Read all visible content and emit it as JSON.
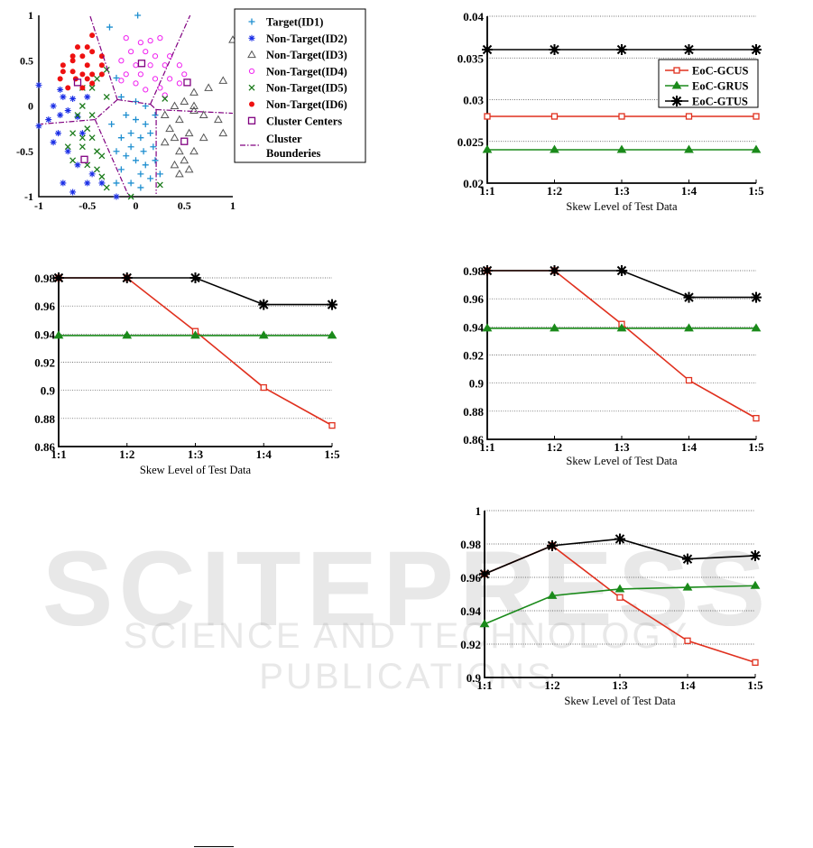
{
  "watermark": {
    "title": "SCITEPRESS",
    "subtitle": "SCIENCE AND TECHNOLOGY PUBLICATIONS"
  },
  "colors": {
    "gcus": "#e0301e",
    "grus": "#1a8a1a",
    "gtus": "#000000",
    "id1": "#1f8fd0",
    "id2": "#1a2ee6",
    "id3": "#555555",
    "id4": "#f020f0",
    "id5": "#1a7a1a",
    "id6": "#ee1111",
    "centers": "#800080",
    "bounds": "#800080"
  },
  "chart_data": [
    {
      "type": "scatter",
      "xlim": [
        -1,
        1
      ],
      "ylim": [
        -1,
        1
      ],
      "xticks": [
        "-1",
        "-0.5",
        "0",
        "0.5",
        "1"
      ],
      "yticks": [
        "1",
        "0.5",
        "0",
        "-0.5",
        "-1"
      ],
      "legend": [
        "Target(ID1)",
        "Non-Target(ID2)",
        "Non-Target(ID3)",
        "Non-Target(ID4)",
        "Non-Target(ID5)",
        "Non-Target(ID6)",
        "Cluster Centers",
        "Cluster Bounderies"
      ],
      "legend_position": "right",
      "series": [
        {
          "name": "Target(ID1)",
          "marker": "plus",
          "points": [
            [
              -0.27,
              0.87
            ],
            [
              0.02,
              1.0
            ],
            [
              -0.2,
              0.31
            ],
            [
              -0.15,
              0.1
            ],
            [
              0,
              0.05
            ],
            [
              0.1,
              0
            ],
            [
              -0.1,
              -0.1
            ],
            [
              0,
              -0.15
            ],
            [
              0.1,
              -0.2
            ],
            [
              -0.05,
              -0.3
            ],
            [
              0.05,
              -0.35
            ],
            [
              0.15,
              -0.3
            ],
            [
              -0.15,
              -0.35
            ],
            [
              -0.05,
              -0.45
            ],
            [
              0.08,
              -0.5
            ],
            [
              0.18,
              -0.45
            ],
            [
              -0.1,
              -0.55
            ],
            [
              0,
              -0.6
            ],
            [
              0.1,
              -0.65
            ],
            [
              -0.15,
              -0.7
            ],
            [
              0.05,
              -0.75
            ],
            [
              0.15,
              -0.8
            ],
            [
              -0.05,
              -0.85
            ],
            [
              0.05,
              -0.9
            ],
            [
              -0.2,
              -0.5
            ],
            [
              0.2,
              -0.1
            ],
            [
              0.2,
              -0.6
            ],
            [
              -0.25,
              -0.2
            ],
            [
              0.25,
              -0.75
            ],
            [
              -0.2,
              -0.85
            ]
          ]
        },
        {
          "name": "Non-Target(ID2)",
          "marker": "star",
          "points": [
            [
              -1,
              0.23
            ],
            [
              -0.78,
              0.18
            ],
            [
              -0.75,
              0.1
            ],
            [
              -0.85,
              0
            ],
            [
              -0.78,
              -0.1
            ],
            [
              -0.9,
              -0.15
            ],
            [
              -0.8,
              -0.3
            ],
            [
              -0.85,
              -0.4
            ],
            [
              -0.7,
              -0.05
            ],
            [
              -0.65,
              0.08
            ],
            [
              -0.6,
              -0.12
            ],
            [
              -0.55,
              -0.3
            ],
            [
              -0.7,
              -0.5
            ],
            [
              -0.6,
              -0.65
            ],
            [
              -0.75,
              -0.85
            ],
            [
              -0.65,
              -0.95
            ],
            [
              -0.5,
              -0.85
            ],
            [
              -0.45,
              -0.75
            ],
            [
              -0.35,
              -0.85
            ],
            [
              -0.2,
              -1.0
            ],
            [
              -1,
              -0.22
            ],
            [
              -0.5,
              0.1
            ]
          ]
        },
        {
          "name": "Non-Target(ID3)",
          "marker": "triangle",
          "points": [
            [
              1,
              0.73
            ],
            [
              0.9,
              0.28
            ],
            [
              0.75,
              0.2
            ],
            [
              0.6,
              0.15
            ],
            [
              0.5,
              0.05
            ],
            [
              0.4,
              0
            ],
            [
              0.3,
              -0.1
            ],
            [
              0.45,
              -0.15
            ],
            [
              0.6,
              -0.05
            ],
            [
              0.7,
              -0.1
            ],
            [
              0.85,
              -0.15
            ],
            [
              0.9,
              -0.3
            ],
            [
              0.7,
              -0.35
            ],
            [
              0.55,
              -0.3
            ],
            [
              0.4,
              -0.35
            ],
            [
              0.3,
              -0.4
            ],
            [
              0.45,
              -0.5
            ],
            [
              0.6,
              -0.5
            ],
            [
              0.5,
              -0.6
            ],
            [
              0.4,
              -0.65
            ],
            [
              0.55,
              -0.7
            ],
            [
              0.45,
              -0.75
            ],
            [
              0.6,
              0
            ],
            [
              0.35,
              -0.25
            ]
          ]
        },
        {
          "name": "Non-Target(ID4)",
          "marker": "circle",
          "points": [
            [
              -0.1,
              0.75
            ],
            [
              0.05,
              0.7
            ],
            [
              0.15,
              0.72
            ],
            [
              0.25,
              0.75
            ],
            [
              -0.05,
              0.6
            ],
            [
              0.1,
              0.6
            ],
            [
              0.2,
              0.55
            ],
            [
              0.35,
              0.55
            ],
            [
              -0.15,
              0.5
            ],
            [
              0,
              0.45
            ],
            [
              0.15,
              0.45
            ],
            [
              0.3,
              0.45
            ],
            [
              0.45,
              0.45
            ],
            [
              0.5,
              0.35
            ],
            [
              -0.1,
              0.35
            ],
            [
              0.05,
              0.35
            ],
            [
              0.2,
              0.3
            ],
            [
              0.35,
              0.3
            ],
            [
              0.45,
              0.25
            ],
            [
              -0.15,
              0.28
            ],
            [
              0,
              0.25
            ],
            [
              0.1,
              0.18
            ],
            [
              0.25,
              0.2
            ],
            [
              0.3,
              0.12
            ]
          ]
        },
        {
          "name": "Non-Target(ID5)",
          "marker": "x",
          "points": [
            [
              -0.3,
              0.4
            ],
            [
              -0.4,
              0.3
            ],
            [
              -0.55,
              0.2
            ],
            [
              -0.45,
              0.2
            ],
            [
              -0.3,
              0.1
            ],
            [
              -0.55,
              0
            ],
            [
              -0.45,
              -0.1
            ],
            [
              -0.6,
              -0.1
            ],
            [
              -0.5,
              -0.25
            ],
            [
              -0.65,
              -0.3
            ],
            [
              -0.55,
              -0.35
            ],
            [
              -0.45,
              -0.35
            ],
            [
              -0.7,
              -0.45
            ],
            [
              -0.55,
              -0.45
            ],
            [
              -0.4,
              -0.5
            ],
            [
              -0.35,
              -0.55
            ],
            [
              -0.65,
              -0.6
            ],
            [
              -0.5,
              -0.65
            ],
            [
              -0.4,
              -0.7
            ],
            [
              -0.35,
              -0.78
            ],
            [
              -0.3,
              -0.9
            ],
            [
              0.25,
              -0.87
            ],
            [
              -0.05,
              -1.0
            ],
            [
              0.3,
              0.08
            ]
          ]
        },
        {
          "name": "Non-Target(ID6)",
          "marker": "dot",
          "points": [
            [
              -0.45,
              0.78
            ],
            [
              -0.6,
              0.65
            ],
            [
              -0.5,
              0.65
            ],
            [
              -0.65,
              0.55
            ],
            [
              -0.55,
              0.55
            ],
            [
              -0.45,
              0.6
            ],
            [
              -0.35,
              0.55
            ],
            [
              -0.75,
              0.45
            ],
            [
              -0.65,
              0.5
            ],
            [
              -0.5,
              0.45
            ],
            [
              -0.35,
              0.45
            ],
            [
              -0.75,
              0.38
            ],
            [
              -0.65,
              0.38
            ],
            [
              -0.55,
              0.35
            ],
            [
              -0.45,
              0.35
            ],
            [
              -0.35,
              0.35
            ],
            [
              -0.78,
              0.3
            ],
            [
              -0.62,
              0.3
            ],
            [
              -0.5,
              0.3
            ],
            [
              -0.45,
              0.25
            ],
            [
              -0.7,
              0.2
            ],
            [
              -0.55,
              0.2
            ]
          ]
        },
        {
          "name": "Cluster Centers",
          "marker": "square",
          "points": [
            [
              -0.6,
              0.26
            ],
            [
              0.06,
              0.47
            ],
            [
              0.53,
              0.26
            ],
            [
              0.5,
              -0.39
            ],
            [
              -0.53,
              -0.59
            ]
          ]
        }
      ],
      "boundaries": [
        [
          [
            -0.47,
            0.99
          ],
          [
            -0.19,
            0.07
          ]
        ],
        [
          [
            -0.19,
            0.07
          ],
          [
            0.15,
            0.02
          ]
        ],
        [
          [
            0.15,
            0.02
          ],
          [
            0.56,
            1
          ]
        ],
        [
          [
            0.15,
            0.02
          ],
          [
            0.21,
            -0.04
          ]
        ],
        [
          [
            0.21,
            -0.04
          ],
          [
            1,
            -0.08
          ]
        ],
        [
          [
            0.21,
            -0.04
          ],
          [
            0.21,
            -0.97
          ]
        ],
        [
          [
            -0.19,
            0.07
          ],
          [
            -0.42,
            -0.15
          ]
        ],
        [
          [
            -0.42,
            -0.15
          ],
          [
            -0.98,
            -0.2
          ]
        ],
        [
          [
            -0.42,
            -0.15
          ],
          [
            -0.07,
            -1
          ]
        ]
      ]
    },
    {
      "type": "line",
      "categories": [
        "1:1",
        "1:2",
        "1:3",
        "1:4",
        "1:5"
      ],
      "xlabel": "Skew Level of Test Data",
      "ylabel": "",
      "ylim": [
        0.02,
        0.04
      ],
      "yticks": [
        "0.02",
        "0.025",
        "0.03",
        "0.035",
        "0.04"
      ],
      "grid": true,
      "legend_position": "right",
      "series": [
        {
          "name": "EoC-GCUS",
          "values": [
            0.028,
            0.028,
            0.028,
            0.028,
            0.028
          ]
        },
        {
          "name": "EoC-GRUS",
          "values": [
            0.024,
            0.024,
            0.024,
            0.024,
            0.024
          ]
        },
        {
          "name": "EoC-GTUS",
          "values": [
            0.036,
            0.036,
            0.036,
            0.036,
            0.036
          ]
        }
      ]
    },
    {
      "type": "line",
      "categories": [
        "1:1",
        "1:2",
        "1:3",
        "1:4",
        "1:5"
      ],
      "xlabel": "Skew Level of Test Data",
      "ylabel": "",
      "ylim": [
        0.86,
        0.98
      ],
      "yticks": [
        "0.86",
        "0.88",
        "0.9",
        "0.92",
        "0.94",
        "0.96",
        "0.98"
      ],
      "grid": true,
      "series": [
        {
          "name": "EoC-GCUS",
          "values": [
            0.98,
            0.98,
            0.942,
            0.902,
            0.875
          ]
        },
        {
          "name": "EoC-GRUS",
          "values": [
            0.939,
            0.939,
            0.939,
            0.939,
            0.939
          ]
        },
        {
          "name": "EoC-GTUS",
          "values": [
            0.98,
            0.98,
            0.98,
            0.961,
            0.961
          ]
        }
      ]
    },
    {
      "type": "line",
      "categories": [
        "1:1",
        "1:2",
        "1:3",
        "1:4",
        "1:5"
      ],
      "xlabel": "Skew Level of Test Data",
      "ylabel": "",
      "ylim": [
        0.86,
        0.98
      ],
      "yticks": [
        "0.86",
        "0.88",
        "0.9",
        "0.92",
        "0.94",
        "0.96",
        "0.98"
      ],
      "grid": true,
      "series": [
        {
          "name": "EoC-GCUS",
          "values": [
            0.98,
            0.98,
            0.942,
            0.902,
            0.875
          ]
        },
        {
          "name": "EoC-GRUS",
          "values": [
            0.939,
            0.939,
            0.939,
            0.939,
            0.939
          ]
        },
        {
          "name": "EoC-GTUS",
          "values": [
            0.98,
            0.98,
            0.98,
            0.961,
            0.961
          ]
        }
      ]
    },
    {
      "type": "line",
      "categories": [
        "1:1",
        "1:2",
        "1:3",
        "1:4",
        "1:5"
      ],
      "xlabel": "Skew Level of Test Data",
      "ylabel": "",
      "ylim": [
        0.9,
        1.0
      ],
      "yticks": [
        "0.9",
        "0.92",
        "0.94",
        "0.96",
        "0.98",
        "1"
      ],
      "grid": true,
      "series": [
        {
          "name": "EoC-GCUS",
          "values": [
            0.962,
            0.979,
            0.948,
            0.922,
            0.909
          ]
        },
        {
          "name": "EoC-GRUS",
          "values": [
            0.932,
            0.949,
            0.953,
            0.954,
            0.955
          ]
        },
        {
          "name": "EoC-GTUS",
          "values": [
            0.962,
            0.979,
            0.983,
            0.971,
            0.973
          ]
        }
      ]
    }
  ]
}
